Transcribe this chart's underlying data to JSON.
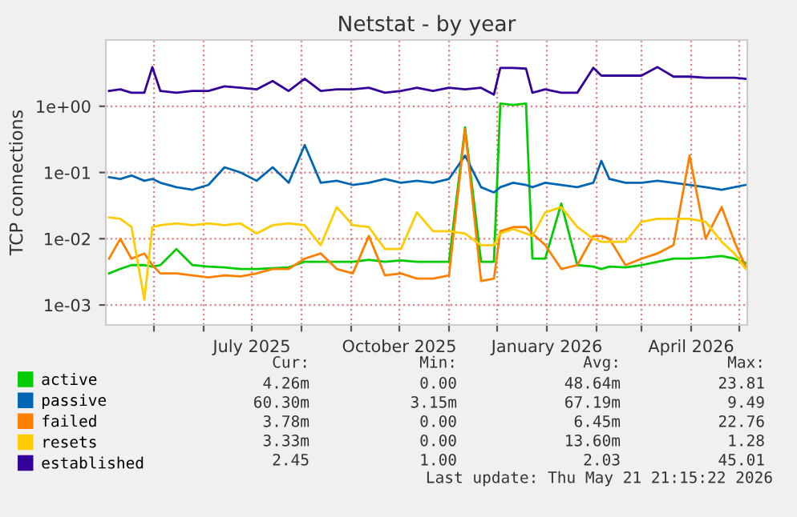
{
  "chart_data": {
    "type": "line",
    "title": "Netstat - by year",
    "ylabel": "TCP connections",
    "x": [
      "2025-04-03",
      "2025-04-10",
      "2025-04-17",
      "2025-04-25",
      "2025-04-30",
      "2025-05-05",
      "2025-05-15",
      "2025-05-25",
      "2025-06-04",
      "2025-06-14",
      "2025-06-24",
      "2025-07-04",
      "2025-07-14",
      "2025-07-24",
      "2025-08-03",
      "2025-08-13",
      "2025-08-23",
      "2025-09-02",
      "2025-09-12",
      "2025-09-22",
      "2025-10-02",
      "2025-10-12",
      "2025-10-22",
      "2025-11-01",
      "2025-11-11",
      "2025-11-21",
      "2025-11-29",
      "2025-12-03",
      "2025-12-11",
      "2025-12-19",
      "2025-12-23",
      "2025-12-31",
      "2026-01-10",
      "2026-01-20",
      "2026-01-30",
      "2026-02-04",
      "2026-02-09",
      "2026-02-19",
      "2026-03-01",
      "2026-03-11",
      "2026-03-21",
      "2026-03-31",
      "2026-04-10",
      "2026-04-20",
      "2026-04-28",
      "2026-05-05"
    ],
    "series": [
      {
        "name": "active",
        "color": "#00cc00",
        "values": [
          0.003,
          0.0035,
          0.004,
          0.004,
          0.0038,
          0.004,
          0.007,
          0.004,
          0.0038,
          0.0037,
          0.0035,
          0.0035,
          0.0036,
          0.0037,
          0.0045,
          0.0045,
          0.0045,
          0.0045,
          0.0048,
          0.0045,
          0.0047,
          0.0045,
          0.0045,
          0.0045,
          0.48,
          0.0045,
          0.0045,
          1.1,
          1.05,
          1.1,
          0.005,
          0.005,
          0.034,
          0.004,
          0.0038,
          0.0035,
          0.0038,
          0.0037,
          0.004,
          0.0045,
          0.005,
          0.005,
          0.0052,
          0.0055,
          0.005,
          0.0043
        ]
      },
      {
        "name": "passive",
        "color": "#0066b3",
        "values": [
          0.085,
          0.08,
          0.09,
          0.075,
          0.08,
          0.07,
          0.06,
          0.055,
          0.065,
          0.12,
          0.1,
          0.075,
          0.12,
          0.07,
          0.26,
          0.07,
          0.075,
          0.065,
          0.07,
          0.08,
          0.07,
          0.075,
          0.07,
          0.08,
          0.18,
          0.06,
          0.05,
          0.06,
          0.07,
          0.065,
          0.06,
          0.07,
          0.065,
          0.06,
          0.07,
          0.15,
          0.08,
          0.07,
          0.07,
          0.075,
          0.07,
          0.065,
          0.06,
          0.055,
          0.06,
          0.065
        ]
      },
      {
        "name": "failed",
        "color": "#ff8000",
        "values": [
          0.005,
          0.01,
          0.005,
          0.006,
          0.004,
          0.003,
          0.003,
          0.0028,
          0.0026,
          0.0028,
          0.0027,
          0.003,
          0.0035,
          0.0035,
          0.005,
          0.006,
          0.0035,
          0.003,
          0.011,
          0.0028,
          0.003,
          0.0025,
          0.0025,
          0.0028,
          0.45,
          0.0023,
          0.0025,
          0.013,
          0.015,
          0.015,
          0.012,
          0.008,
          0.0035,
          0.004,
          0.011,
          0.011,
          0.01,
          0.004,
          0.005,
          0.006,
          0.008,
          0.18,
          0.01,
          0.03,
          0.009,
          0.0038
        ]
      },
      {
        "name": "resets",
        "color": "#ffcc00",
        "values": [
          0.021,
          0.02,
          0.015,
          0.0012,
          0.015,
          0.016,
          0.017,
          0.016,
          0.017,
          0.016,
          0.017,
          0.012,
          0.016,
          0.017,
          0.016,
          0.008,
          0.03,
          0.016,
          0.015,
          0.007,
          0.007,
          0.025,
          0.013,
          0.013,
          0.012,
          0.008,
          0.008,
          0.012,
          0.014,
          0.012,
          0.011,
          0.025,
          0.03,
          0.015,
          0.01,
          0.009,
          0.009,
          0.009,
          0.018,
          0.02,
          0.02,
          0.02,
          0.018,
          0.009,
          0.006,
          0.0035
        ]
      },
      {
        "name": "established",
        "color": "#330099",
        "values": [
          1.7,
          1.8,
          1.6,
          1.6,
          3.9,
          1.7,
          1.6,
          1.7,
          1.7,
          2.0,
          1.9,
          1.8,
          2.4,
          1.7,
          2.6,
          1.7,
          1.8,
          1.8,
          1.9,
          1.6,
          1.7,
          1.9,
          1.7,
          1.9,
          1.8,
          1.9,
          1.5,
          3.8,
          3.8,
          3.7,
          1.6,
          1.8,
          1.6,
          1.6,
          3.8,
          2.9,
          2.9,
          2.9,
          2.9,
          3.9,
          2.8,
          2.8,
          2.7,
          2.7,
          2.7,
          2.6
        ]
      }
    ],
    "log": "y",
    "ylim": [
      0.0005,
      10
    ],
    "yticks": [
      {
        "value": 0.001,
        "label": "1e-03"
      },
      {
        "value": 0.01,
        "label": "1e-02"
      },
      {
        "value": 0.1,
        "label": "1e-01"
      },
      {
        "value": 1,
        "label": "1e+00"
      }
    ],
    "xlim": [
      "2025-04-01",
      "2026-05-06"
    ],
    "xticks": [
      {
        "value": "2025-05-01",
        "label": null
      },
      {
        "value": "2025-06-01",
        "label": null
      },
      {
        "value": "2025-07-01",
        "label": "July 2025"
      },
      {
        "value": "2025-08-01",
        "label": null
      },
      {
        "value": "2025-09-01",
        "label": null
      },
      {
        "value": "2025-10-01",
        "label": "October 2025"
      },
      {
        "value": "2025-11-01",
        "label": null
      },
      {
        "value": "2025-12-01",
        "label": null
      },
      {
        "value": "2026-01-01",
        "label": "January 2026"
      },
      {
        "value": "2026-02-01",
        "label": null
      },
      {
        "value": "2026-03-01",
        "label": null
      },
      {
        "value": "2026-04-01",
        "label": "April 2026"
      },
      {
        "value": "2026-05-01",
        "label": null
      }
    ],
    "grid": true,
    "legend": "bottom",
    "marker": "none",
    "line_style": "solid",
    "annotations": [
      "Cur:",
      "Min:",
      "Avg:",
      "Max:",
      "4.26m",
      "0.00",
      "48.64m",
      "23.81",
      "60.30m",
      "3.15m",
      "67.19m",
      "9.49",
      "3.78m",
      "0.00",
      "6.45m",
      "22.76",
      "3.33m",
      "0.00",
      "13.60m",
      "1.28",
      "2.45",
      "1.00",
      "2.03",
      "45.01",
      "Last update: Thu May 21 21:15:22 2026"
    ]
  }
}
